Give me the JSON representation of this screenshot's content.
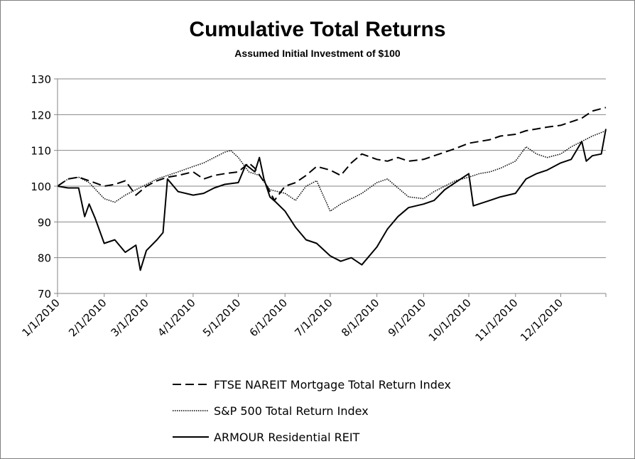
{
  "chart_data": {
    "type": "line",
    "title": "Cumulative Total Returns",
    "subtitle": "Assumed Initial Investment of $100",
    "xlabel": "",
    "ylabel": "",
    "ylim": [
      70,
      130
    ],
    "yticks": [
      70,
      80,
      90,
      100,
      110,
      120,
      130
    ],
    "xlim": [
      "2010-01-01",
      "2010-12-31"
    ],
    "xticks": [
      "1/1/2010",
      "2/1/2010",
      "3/1/2010",
      "4/1/2010",
      "5/1/2010",
      "6/1/2010",
      "7/1/2010",
      "8/1/2010",
      "9/1/2010",
      "10/1/2010",
      "11/1/2010",
      "12/1/2010"
    ],
    "grid": "horizontal",
    "legend_position": "bottom",
    "series": [
      {
        "name": "FTSE NAREIT Mortgage Total Return Index",
        "style": "dashed",
        "color": "#000000",
        "points": [
          [
            "1/1/2010",
            100
          ],
          [
            "1/8/2010",
            102
          ],
          [
            "1/15/2010",
            102.5
          ],
          [
            "1/22/2010",
            101.5
          ],
          [
            "2/1/2010",
            100
          ],
          [
            "2/8/2010",
            100.5
          ],
          [
            "2/15/2010",
            101.5
          ],
          [
            "2/22/2010",
            97.5
          ],
          [
            "3/1/2010",
            100
          ],
          [
            "3/8/2010",
            101.5
          ],
          [
            "3/15/2010",
            102.5
          ],
          [
            "3/22/2010",
            103
          ],
          [
            "4/1/2010",
            104
          ],
          [
            "4/8/2010",
            102
          ],
          [
            "4/15/2010",
            103
          ],
          [
            "4/22/2010",
            103.5
          ],
          [
            "5/1/2010",
            104
          ],
          [
            "5/8/2010",
            106.5
          ],
          [
            "5/12/2010",
            105
          ],
          [
            "5/20/2010",
            100
          ],
          [
            "5/25/2010",
            96
          ],
          [
            "6/1/2010",
            100
          ],
          [
            "6/8/2010",
            101
          ],
          [
            "6/15/2010",
            103
          ],
          [
            "6/22/2010",
            105.5
          ],
          [
            "7/1/2010",
            104.5
          ],
          [
            "7/8/2010",
            103
          ],
          [
            "7/15/2010",
            106.5
          ],
          [
            "7/22/2010",
            109
          ],
          [
            "8/1/2010",
            107.5
          ],
          [
            "8/8/2010",
            107
          ],
          [
            "8/15/2010",
            108
          ],
          [
            "8/22/2010",
            107
          ],
          [
            "9/1/2010",
            107.5
          ],
          [
            "9/8/2010",
            108.5
          ],
          [
            "9/15/2010",
            109.5
          ],
          [
            "9/22/2010",
            110.5
          ],
          [
            "10/1/2010",
            112
          ],
          [
            "10/8/2010",
            112.5
          ],
          [
            "10/15/2010",
            113
          ],
          [
            "10/22/2010",
            114
          ],
          [
            "11/1/2010",
            114.5
          ],
          [
            "11/8/2010",
            115.5
          ],
          [
            "11/15/2010",
            116
          ],
          [
            "11/22/2010",
            116.5
          ],
          [
            "12/1/2010",
            117
          ],
          [
            "12/8/2010",
            118
          ],
          [
            "12/15/2010",
            119
          ],
          [
            "12/22/2010",
            121
          ],
          [
            "12/31/2010",
            122
          ]
        ]
      },
      {
        "name": "S&P 500 Total Return Index",
        "style": "dotted",
        "color": "#000000",
        "points": [
          [
            "1/1/2010",
            100
          ],
          [
            "1/8/2010",
            102
          ],
          [
            "1/15/2010",
            102.5
          ],
          [
            "1/22/2010",
            101
          ],
          [
            "2/1/2010",
            96.5
          ],
          [
            "2/8/2010",
            95.5
          ],
          [
            "2/15/2010",
            97.5
          ],
          [
            "2/22/2010",
            99
          ],
          [
            "3/1/2010",
            100.5
          ],
          [
            "3/8/2010",
            102
          ],
          [
            "3/15/2010",
            103
          ],
          [
            "3/22/2010",
            104
          ],
          [
            "4/1/2010",
            105.5
          ],
          [
            "4/8/2010",
            106.5
          ],
          [
            "4/15/2010",
            108
          ],
          [
            "4/22/2010",
            109.5
          ],
          [
            "4/26/2010",
            110
          ],
          [
            "5/1/2010",
            108
          ],
          [
            "5/8/2010",
            104
          ],
          [
            "5/15/2010",
            103
          ],
          [
            "5/22/2010",
            99
          ],
          [
            "6/1/2010",
            98
          ],
          [
            "6/8/2010",
            96
          ],
          [
            "6/15/2010",
            100
          ],
          [
            "6/22/2010",
            101.5
          ],
          [
            "7/1/2010",
            93
          ],
          [
            "7/8/2010",
            95
          ],
          [
            "7/15/2010",
            96.5
          ],
          [
            "7/22/2010",
            98
          ],
          [
            "8/1/2010",
            101
          ],
          [
            "8/8/2010",
            102
          ],
          [
            "8/15/2010",
            99.5
          ],
          [
            "8/22/2010",
            97
          ],
          [
            "9/1/2010",
            96.5
          ],
          [
            "9/8/2010",
            98.5
          ],
          [
            "9/15/2010",
            100
          ],
          [
            "9/22/2010",
            101.5
          ],
          [
            "10/1/2010",
            102.5
          ],
          [
            "10/8/2010",
            103.5
          ],
          [
            "10/15/2010",
            104
          ],
          [
            "10/22/2010",
            105
          ],
          [
            "11/1/2010",
            107
          ],
          [
            "11/8/2010",
            111
          ],
          [
            "11/15/2010",
            109
          ],
          [
            "11/22/2010",
            108
          ],
          [
            "12/1/2010",
            109
          ],
          [
            "12/8/2010",
            111
          ],
          [
            "12/15/2010",
            112.5
          ],
          [
            "12/22/2010",
            114
          ],
          [
            "12/31/2010",
            115.5
          ]
        ]
      },
      {
        "name": "ARMOUR Residential REIT",
        "style": "solid",
        "color": "#000000",
        "points": [
          [
            "1/1/2010",
            100
          ],
          [
            "1/8/2010",
            99.5
          ],
          [
            "1/15/2010",
            99.5
          ],
          [
            "1/19/2010",
            91.5
          ],
          [
            "1/22/2010",
            95
          ],
          [
            "1/26/2010",
            91
          ],
          [
            "2/1/2010",
            84
          ],
          [
            "2/8/2010",
            85
          ],
          [
            "2/15/2010",
            81.5
          ],
          [
            "2/22/2010",
            83.5
          ],
          [
            "2/25/2010",
            76.5
          ],
          [
            "3/1/2010",
            82
          ],
          [
            "3/8/2010",
            85
          ],
          [
            "3/12/2010",
            87
          ],
          [
            "3/15/2010",
            102
          ],
          [
            "3/22/2010",
            98.5
          ],
          [
            "4/1/2010",
            97.5
          ],
          [
            "4/8/2010",
            98
          ],
          [
            "4/15/2010",
            99.5
          ],
          [
            "4/22/2010",
            100.5
          ],
          [
            "5/1/2010",
            101
          ],
          [
            "5/6/2010",
            106
          ],
          [
            "5/12/2010",
            104
          ],
          [
            "5/15/2010",
            108
          ],
          [
            "5/18/2010",
            102
          ],
          [
            "5/22/2010",
            97
          ],
          [
            "5/26/2010",
            95.5
          ],
          [
            "6/1/2010",
            93
          ],
          [
            "6/8/2010",
            88.5
          ],
          [
            "6/15/2010",
            85
          ],
          [
            "6/22/2010",
            84
          ],
          [
            "7/1/2010",
            80.5
          ],
          [
            "7/8/2010",
            79
          ],
          [
            "7/15/2010",
            80
          ],
          [
            "7/22/2010",
            78
          ],
          [
            "8/1/2010",
            83
          ],
          [
            "8/8/2010",
            88
          ],
          [
            "8/15/2010",
            91.5
          ],
          [
            "8/22/2010",
            94
          ],
          [
            "9/1/2010",
            95
          ],
          [
            "9/8/2010",
            96
          ],
          [
            "9/15/2010",
            99
          ],
          [
            "9/22/2010",
            101
          ],
          [
            "10/1/2010",
            103.5
          ],
          [
            "10/4/2010",
            94.5
          ],
          [
            "10/15/2010",
            96
          ],
          [
            "10/22/2010",
            97
          ],
          [
            "11/1/2010",
            98
          ],
          [
            "11/8/2010",
            102
          ],
          [
            "11/15/2010",
            103.5
          ],
          [
            "11/22/2010",
            104.5
          ],
          [
            "12/1/2010",
            106.5
          ],
          [
            "12/8/2010",
            107.5
          ],
          [
            "12/15/2010",
            112.5
          ],
          [
            "12/18/2010",
            107
          ],
          [
            "12/22/2010",
            108.5
          ],
          [
            "12/28/2010",
            109
          ],
          [
            "12/31/2010",
            116
          ]
        ]
      }
    ]
  }
}
